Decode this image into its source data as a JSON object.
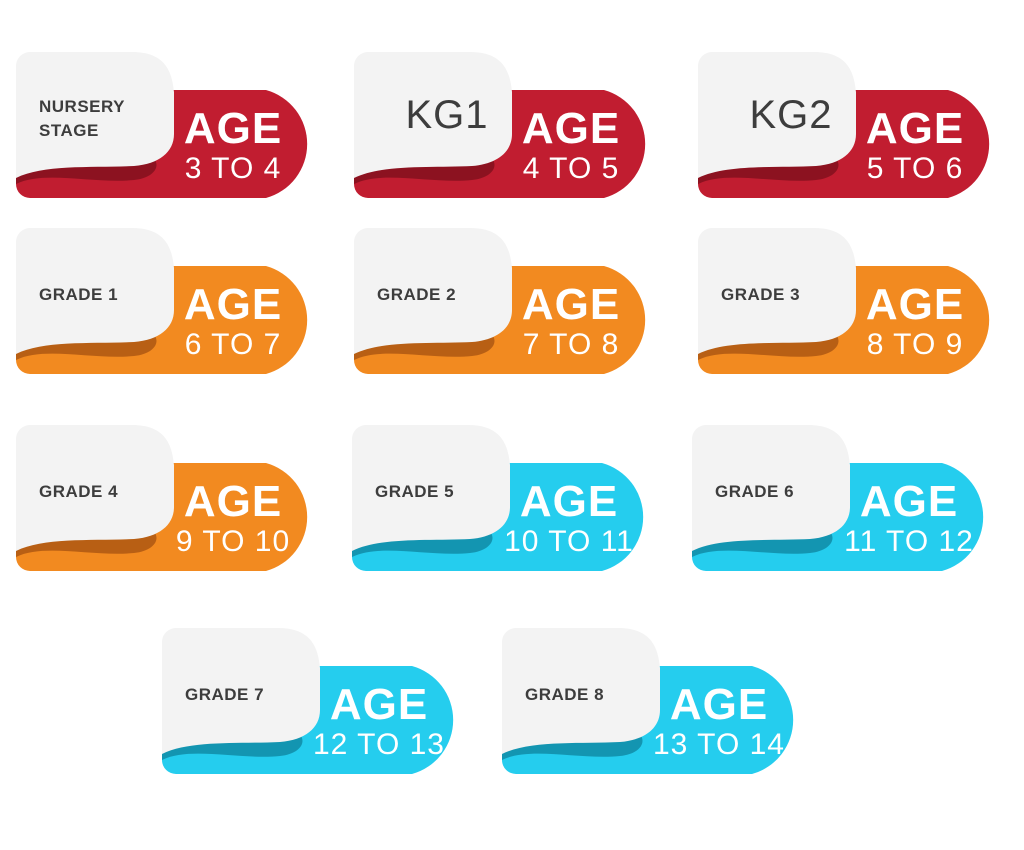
{
  "colors": {
    "red": {
      "main": "#c11d30",
      "dark": "#8c1220"
    },
    "orange": {
      "main": "#f28a20",
      "dark": "#b85f14"
    },
    "cyan": {
      "main": "#25cdee",
      "dark": "#1395b1"
    },
    "panel": "#f3f3f3"
  },
  "cards": [
    {
      "stage": "NURSERY\nSTAGE",
      "age_word": "AGE",
      "age_range": "3 TO 4",
      "color": "red",
      "big": false
    },
    {
      "stage": "KG1",
      "age_word": "AGE",
      "age_range": "4 TO 5",
      "color": "red",
      "big": true
    },
    {
      "stage": "KG2",
      "age_word": "AGE",
      "age_range": "5 TO 6",
      "color": "red",
      "big": true
    },
    {
      "stage": "GRADE 1",
      "age_word": "AGE",
      "age_range": "6 TO 7",
      "color": "orange",
      "big": false
    },
    {
      "stage": "GRADE 2",
      "age_word": "AGE",
      "age_range": "7 TO 8",
      "color": "orange",
      "big": false
    },
    {
      "stage": "GRADE 3",
      "age_word": "AGE",
      "age_range": "8 TO 9",
      "color": "orange",
      "big": false
    },
    {
      "stage": "GRADE 4",
      "age_word": "AGE",
      "age_range": "9 TO 10",
      "color": "orange",
      "big": false
    },
    {
      "stage": "GRADE 5",
      "age_word": "AGE",
      "age_range": "10 TO 11",
      "color": "cyan",
      "big": false
    },
    {
      "stage": "GRADE 6",
      "age_word": "AGE",
      "age_range": "11 TO 12",
      "color": "cyan",
      "big": false
    },
    {
      "stage": "GRADE 7",
      "age_word": "AGE",
      "age_range": "12 TO 13",
      "color": "cyan",
      "big": false
    },
    {
      "stage": "GRADE 8",
      "age_word": "AGE",
      "age_range": "13 TO 14",
      "color": "cyan",
      "big": false
    }
  ]
}
